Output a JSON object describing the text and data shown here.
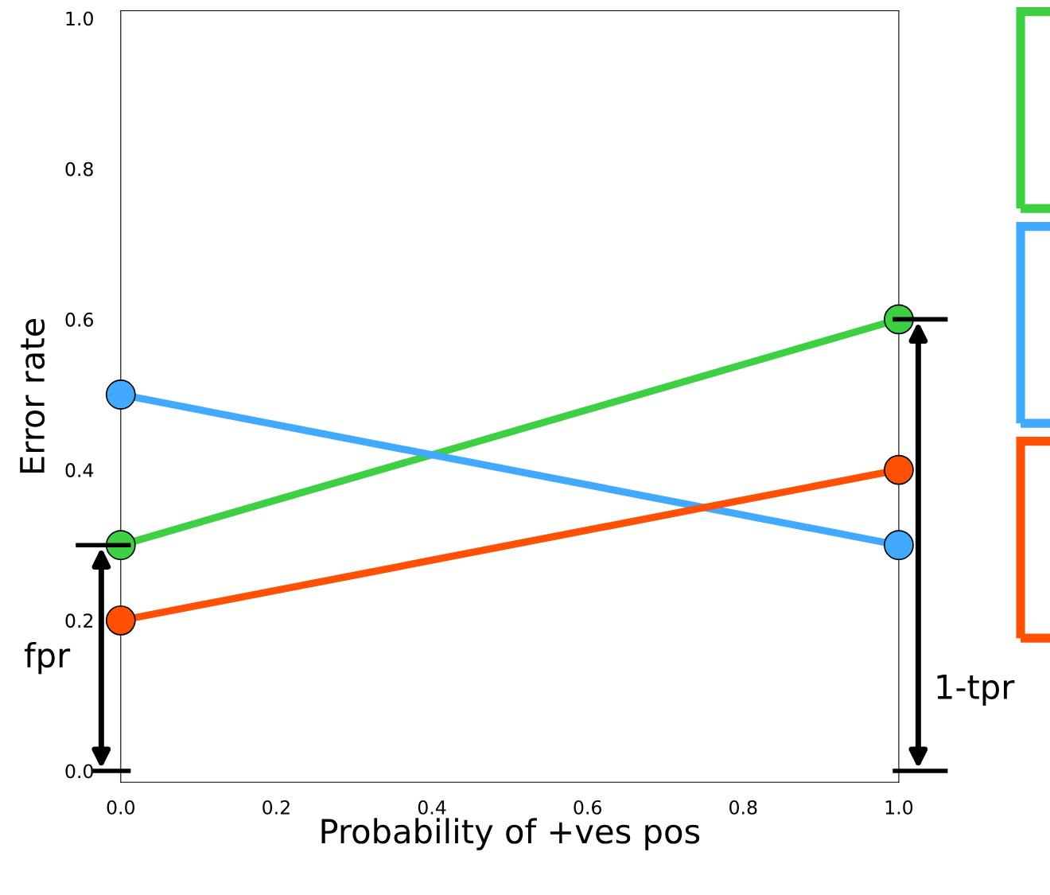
{
  "chart_data": {
    "type": "line",
    "xlabel": "Probability of +ves pos",
    "ylabel": "Error rate",
    "x": [
      0,
      1
    ],
    "xlim": [
      0,
      1
    ],
    "ylim": [
      -0.015,
      1.01
    ],
    "xticks": [
      {
        "value": 0,
        "label": "0.0"
      },
      0.2,
      0.4,
      0.6,
      0.8,
      {
        "value": 1,
        "label": "1.0"
      }
    ],
    "yticks": [
      {
        "value": 0,
        "label": "0.0"
      },
      0.2,
      0.4,
      0.6,
      0.8,
      {
        "value": 1,
        "label": "1.0"
      }
    ],
    "marker": "circle",
    "grid": false,
    "series": [
      {
        "color": "#3cd042",
        "values": [
          0.3,
          0.6
        ]
      },
      {
        "color": "#41aaff",
        "values": [
          0.5,
          0.3
        ]
      },
      {
        "color": "#ff5005",
        "values": [
          0.2,
          0.4
        ]
      }
    ],
    "annotations": [
      "fpr",
      "1-tpr"
    ]
  }
}
